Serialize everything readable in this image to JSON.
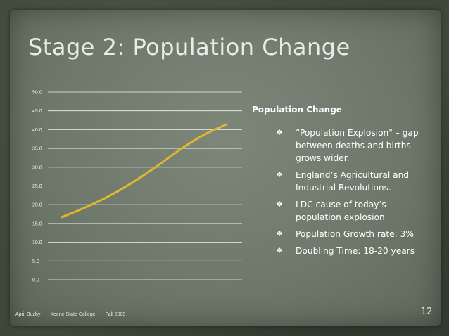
{
  "slide": {
    "title": "Stage 2: Population Change",
    "side_heading": "Population Change",
    "bullets": [
      {
        "icon": "diamond-bullet-icon",
        "text": "“Population Explosion\" – gap between deaths and births grows wider."
      },
      {
        "icon": "diamond-bullet-icon",
        "text": "England’s Agricultural and Industrial Revolutions."
      },
      {
        "icon": "diamond-bullet-icon",
        "text": "LDC cause of today’s population explosion"
      },
      {
        "icon": "diamond-bullet-icon",
        "text": "Population Growth rate:  3%"
      },
      {
        "icon": "diamond-bullet-icon",
        "text": "Doubling Time: 18-20 years"
      }
    ],
    "footer": {
      "author": "April Buzby",
      "school": "Keene State College",
      "term": "Fall 2009"
    },
    "page_number": "12"
  },
  "chart_data": {
    "type": "line",
    "ylim": [
      0,
      50
    ],
    "y_ticks": [
      "0.0",
      "5.0",
      "10.0",
      "15.0",
      "20.0",
      "25.0",
      "30.0",
      "35.0",
      "40.0",
      "45.0",
      "50.0"
    ],
    "grid": true,
    "series": [
      {
        "color": "#e0b632",
        "x": [
          0,
          1,
          2,
          3,
          4,
          5,
          6,
          7
        ],
        "values": [
          16.7,
          19.3,
          22.3,
          25.9,
          30.1,
          34.6,
          38.5,
          41.4
        ]
      }
    ]
  },
  "colors": {
    "line": "#e0b632",
    "grid": "#f2f2f2",
    "text": "#ffffff"
  }
}
